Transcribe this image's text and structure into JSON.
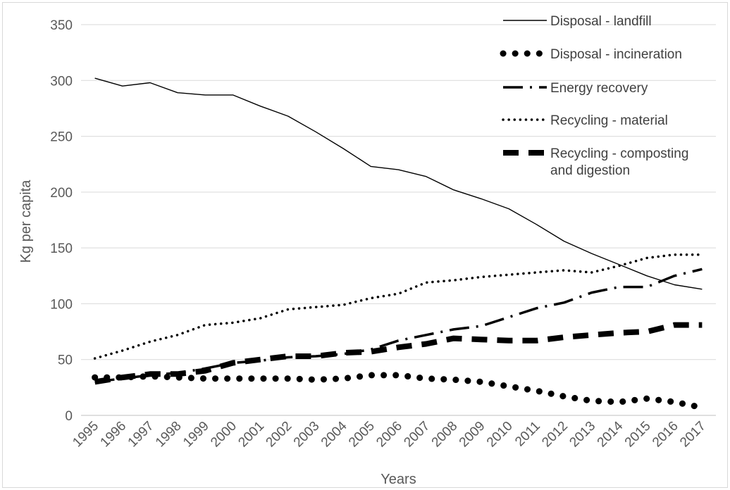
{
  "chart_data": {
    "type": "line",
    "xlabel": "Years",
    "ylabel": "Kg  per capita",
    "ylim": [
      0,
      350
    ],
    "yticks": [
      0,
      50,
      100,
      150,
      200,
      250,
      300,
      350
    ],
    "grid": true,
    "legend_position": "top-right",
    "categories": [
      "1995",
      "1996",
      "1997",
      "1998",
      "1999",
      "2000",
      "2001",
      "2002",
      "2003",
      "2004",
      "2005",
      "2006",
      "2007",
      "2008",
      "2009",
      "2010",
      "2011",
      "2012",
      "2013",
      "2014",
      "2015",
      "2016",
      "2017"
    ],
    "series": [
      {
        "name": "Disposal - landfill",
        "legend_lines": [
          "Disposal - landfill"
        ],
        "style": "solid-thin",
        "color": "#000000",
        "values": [
          302,
          295,
          298,
          289,
          287,
          287,
          277,
          268,
          254,
          239,
          223,
          220,
          214,
          202,
          194,
          185,
          171,
          156,
          145,
          135,
          125,
          117,
          113
        ]
      },
      {
        "name": "Disposal - incineration",
        "legend_lines": [
          "Disposal - incineration"
        ],
        "style": "round-dot-heavy",
        "color": "#000000",
        "values": [
          34,
          34,
          35,
          34,
          33,
          33,
          33,
          33,
          32,
          33,
          36,
          36,
          33,
          32,
          30,
          26,
          22,
          17,
          13,
          12,
          15,
          12,
          7
        ]
      },
      {
        "name": "Energy recovery",
        "legend_lines": [
          "Energy recovery"
        ],
        "style": "long-dash-dot",
        "color": "#000000",
        "values": [
          30,
          33,
          36,
          38,
          42,
          47,
          49,
          52,
          53,
          55,
          59,
          67,
          72,
          77,
          80,
          88,
          96,
          101,
          110,
          115,
          115,
          125,
          131
        ]
      },
      {
        "name": "Recycling - material",
        "legend_lines": [
          "Recycling - material"
        ],
        "style": "dotted",
        "color": "#000000",
        "values": [
          51,
          58,
          66,
          72,
          81,
          83,
          87,
          95,
          97,
          99,
          105,
          109,
          119,
          121,
          124,
          126,
          128,
          130,
          128,
          134,
          141,
          144,
          144
        ]
      },
      {
        "name": "Recycling - composting and digestion",
        "legend_lines": [
          "Recycling - composting",
          "and digestion"
        ],
        "style": "dash-heavy",
        "color": "#000000",
        "values": [
          30,
          34,
          37,
          37,
          40,
          47,
          50,
          53,
          53,
          56,
          57,
          61,
          64,
          69,
          68,
          67,
          67,
          70,
          72,
          74,
          75,
          81,
          81
        ]
      }
    ]
  }
}
